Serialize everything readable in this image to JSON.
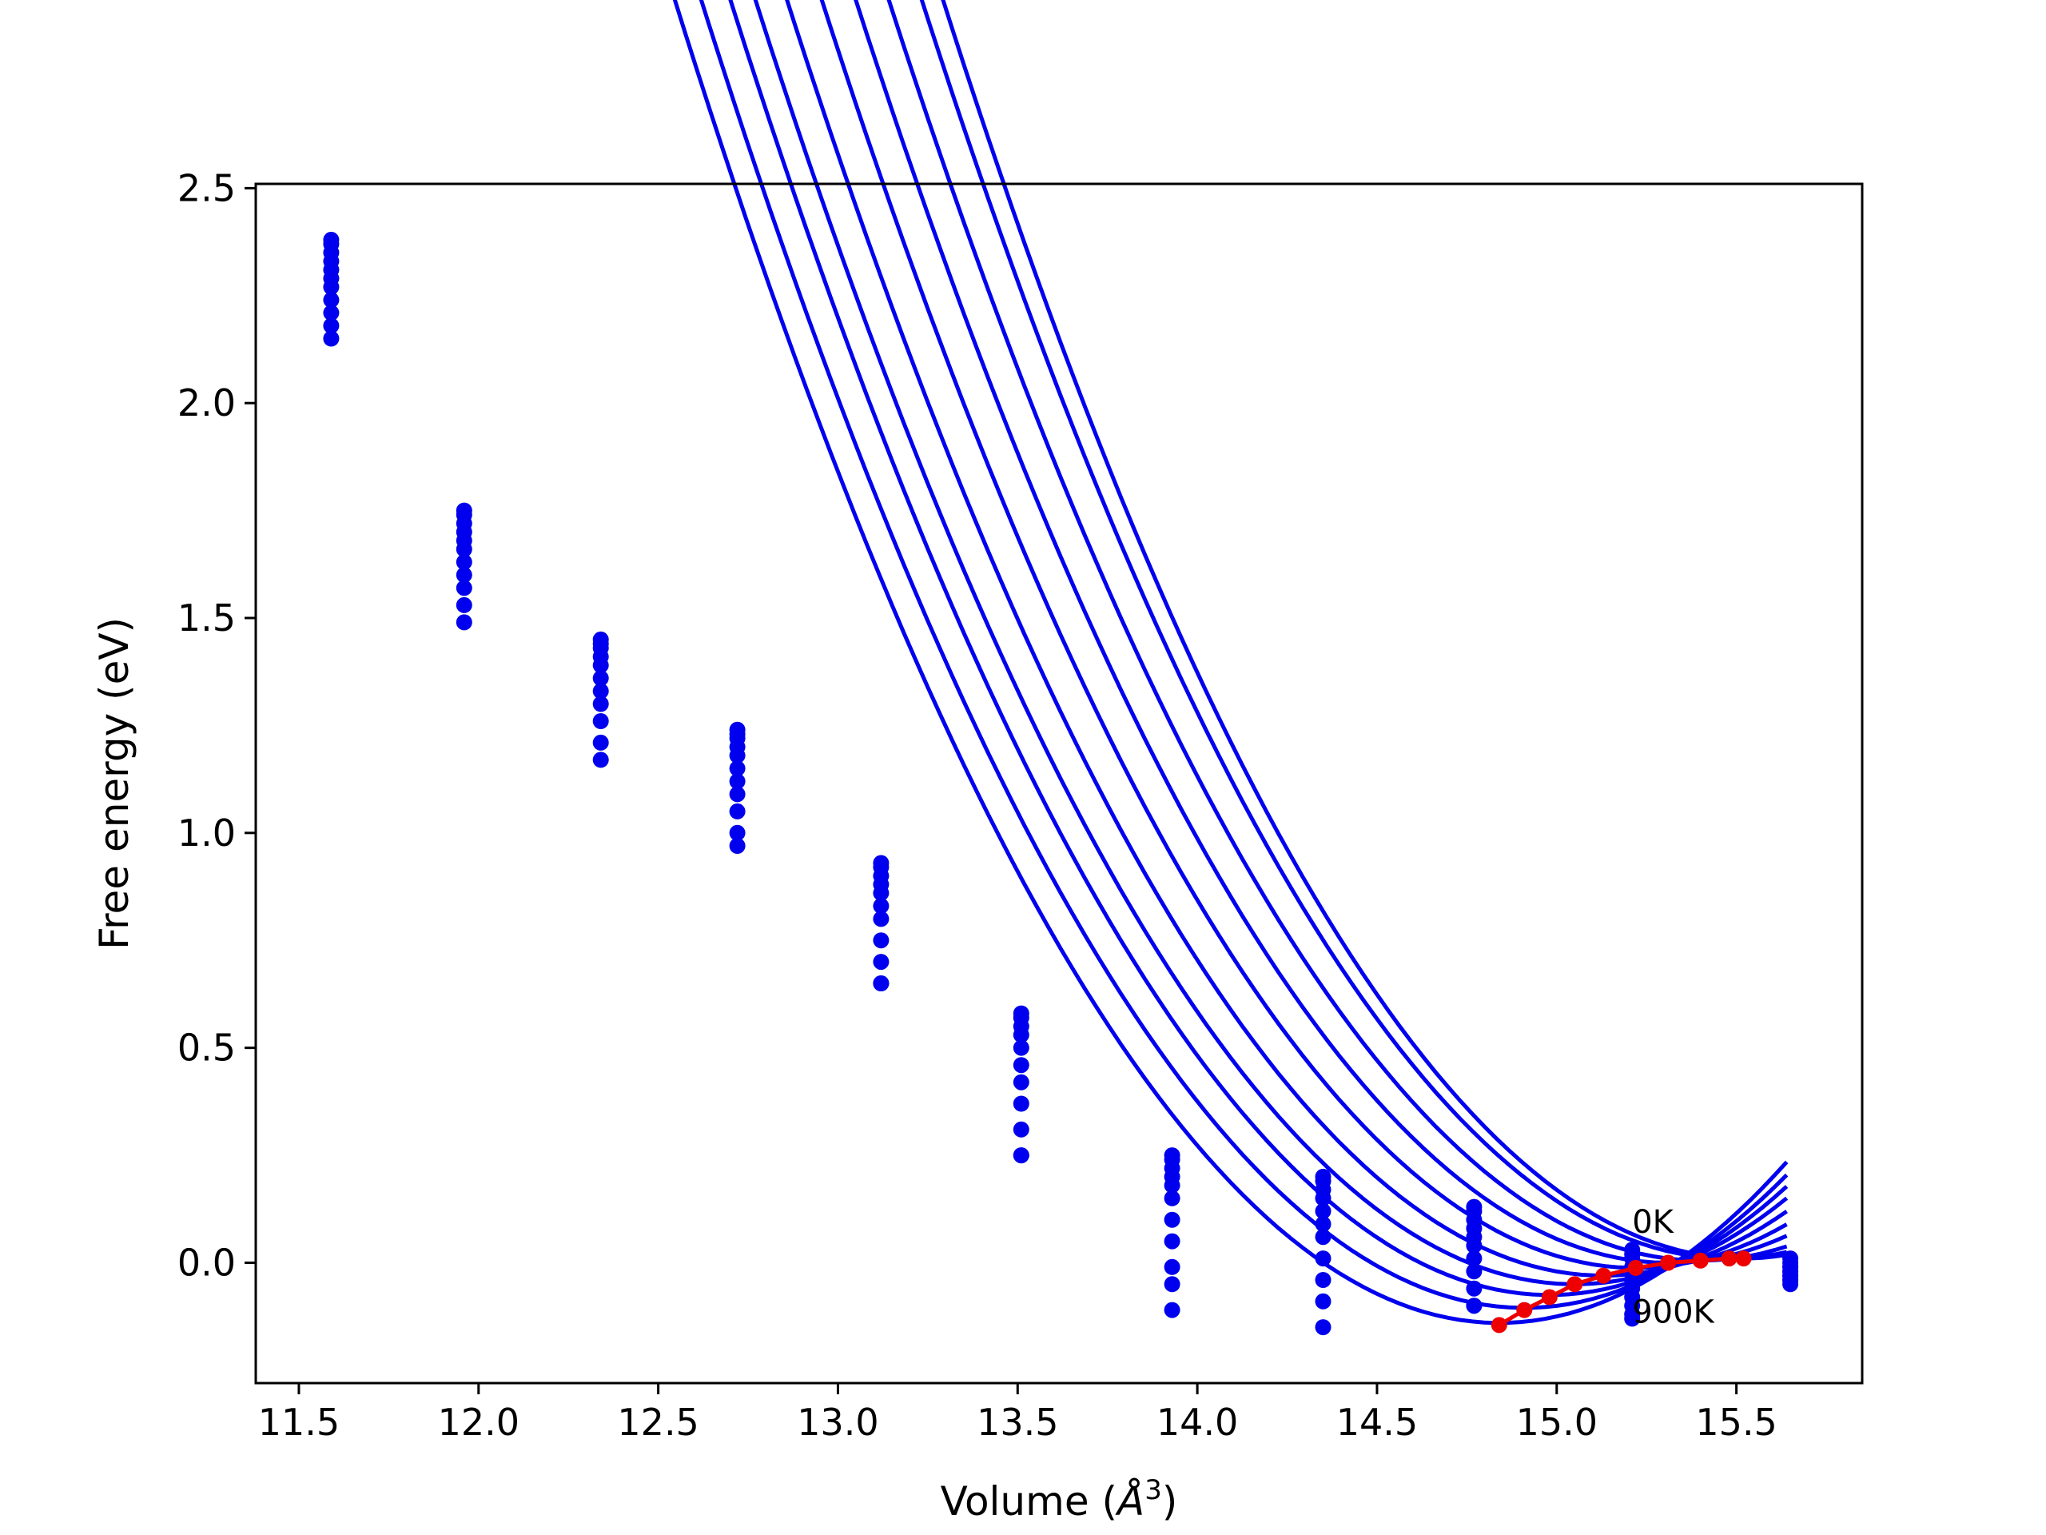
{
  "chart_data": {
    "type": "scatter",
    "title": "",
    "xlabel": "Volume (",
    "xlabel_unit": "Å",
    "xlabel_exp": "3",
    "xlabel_close": ")",
    "ylabel": "Free energy (eV)",
    "xlim": [
      11.38,
      15.85
    ],
    "ylim": [
      -0.28,
      2.51
    ],
    "xticks": [
      11.5,
      12.0,
      12.5,
      13.0,
      13.5,
      14.0,
      14.5,
      15.0,
      15.5
    ],
    "xtick_labels": [
      "11.5",
      "12.0",
      "12.5",
      "13.0",
      "13.5",
      "14.0",
      "14.5",
      "15.0",
      "15.5"
    ],
    "yticks": [
      0.0,
      0.5,
      1.0,
      1.5,
      2.0,
      2.5
    ],
    "ytick_labels": [
      "0.0",
      "0.5",
      "1.0",
      "1.5",
      "2.0",
      "2.5"
    ],
    "grid": false,
    "legend": "none",
    "series_color": "#0000ee",
    "minima_color": "#ee0000",
    "volumes": [
      11.59,
      11.96,
      12.34,
      12.72,
      13.12,
      13.51,
      13.93,
      14.35,
      14.77,
      15.21,
      15.65
    ],
    "series": [
      {
        "values": [
          2.38,
          1.75,
          1.45,
          1.24,
          0.93,
          0.58,
          0.25,
          0.2,
          0.13,
          0.03,
          0.01
        ]
      },
      {
        "values": [
          2.37,
          1.74,
          1.44,
          1.23,
          0.92,
          0.57,
          0.24,
          0.19,
          0.12,
          0.02,
          0.0
        ]
      },
      {
        "values": [
          2.35,
          1.72,
          1.43,
          1.22,
          0.9,
          0.55,
          0.22,
          0.17,
          0.1,
          0.01,
          -0.01
        ]
      },
      {
        "values": [
          2.33,
          1.7,
          1.41,
          1.2,
          0.88,
          0.53,
          0.2,
          0.15,
          0.08,
          -0.01,
          -0.01
        ]
      },
      {
        "values": [
          2.31,
          1.68,
          1.39,
          1.18,
          0.86,
          0.5,
          0.18,
          0.12,
          0.06,
          -0.02,
          -0.02
        ]
      },
      {
        "values": [
          2.29,
          1.66,
          1.36,
          1.15,
          0.83,
          0.46,
          0.15,
          0.09,
          0.04,
          -0.04,
          -0.02
        ]
      },
      {
        "values": [
          2.27,
          1.63,
          1.33,
          1.12,
          0.8,
          0.42,
          0.1,
          0.06,
          0.01,
          -0.06,
          -0.03
        ]
      },
      {
        "values": [
          2.24,
          1.6,
          1.3,
          1.09,
          0.75,
          0.37,
          0.05,
          0.01,
          -0.02,
          -0.08,
          -0.03
        ]
      },
      {
        "values": [
          2.21,
          1.57,
          1.26,
          1.05,
          0.7,
          0.31,
          -0.01,
          -0.04,
          -0.06,
          -0.1,
          -0.04
        ]
      },
      {
        "values": [
          2.18,
          1.53,
          1.21,
          1.0,
          0.65,
          0.25,
          -0.05,
          -0.09,
          -0.1,
          -0.12,
          -0.04
        ]
      },
      {
        "values": [
          2.15,
          1.49,
          1.17,
          0.97,
          0.65,
          0.25,
          -0.11,
          -0.15,
          -0.1,
          -0.13,
          -0.05
        ]
      }
    ],
    "fits": [
      {
        "v0": 15.52,
        "e0": 0.01,
        "a": 0.59,
        "xmin": 11.6,
        "xmax": 15.64
      },
      {
        "v0": 15.48,
        "e0": 0.01,
        "a": 0.58,
        "xmin": 11.6,
        "xmax": 15.64
      },
      {
        "v0": 15.4,
        "e0": 0.005,
        "a": 0.575,
        "xmin": 11.6,
        "xmax": 15.64
      },
      {
        "v0": 15.31,
        "e0": 0.0,
        "a": 0.575,
        "xmin": 11.6,
        "xmax": 15.64
      },
      {
        "v0": 15.22,
        "e0": -0.012,
        "a": 0.575,
        "xmin": 11.6,
        "xmax": 15.64
      },
      {
        "v0": 15.13,
        "e0": -0.03,
        "a": 0.575,
        "xmin": 11.6,
        "xmax": 15.64
      },
      {
        "v0": 15.05,
        "e0": -0.05,
        "a": 0.575,
        "xmin": 11.6,
        "xmax": 15.64
      },
      {
        "v0": 14.98,
        "e0": -0.075,
        "a": 0.58,
        "xmin": 11.6,
        "xmax": 15.64
      },
      {
        "v0": 14.91,
        "e0": -0.105,
        "a": 0.58,
        "xmin": 11.6,
        "xmax": 15.64
      },
      {
        "v0": 14.84,
        "e0": -0.14,
        "a": 0.585,
        "xmin": 11.6,
        "xmax": 15.64
      }
    ],
    "minima": {
      "x": [
        14.84,
        14.91,
        14.98,
        15.05,
        15.13,
        15.22,
        15.31,
        15.4,
        15.48,
        15.52
      ],
      "y": [
        -0.145,
        -0.11,
        -0.08,
        -0.05,
        -0.03,
        -0.012,
        0.0,
        0.005,
        0.01,
        0.01
      ]
    },
    "annotations": [
      {
        "text": "0K",
        "x": 15.21,
        "y": 0.07
      },
      {
        "text": "900K",
        "x": 15.21,
        "y": -0.14
      }
    ]
  }
}
